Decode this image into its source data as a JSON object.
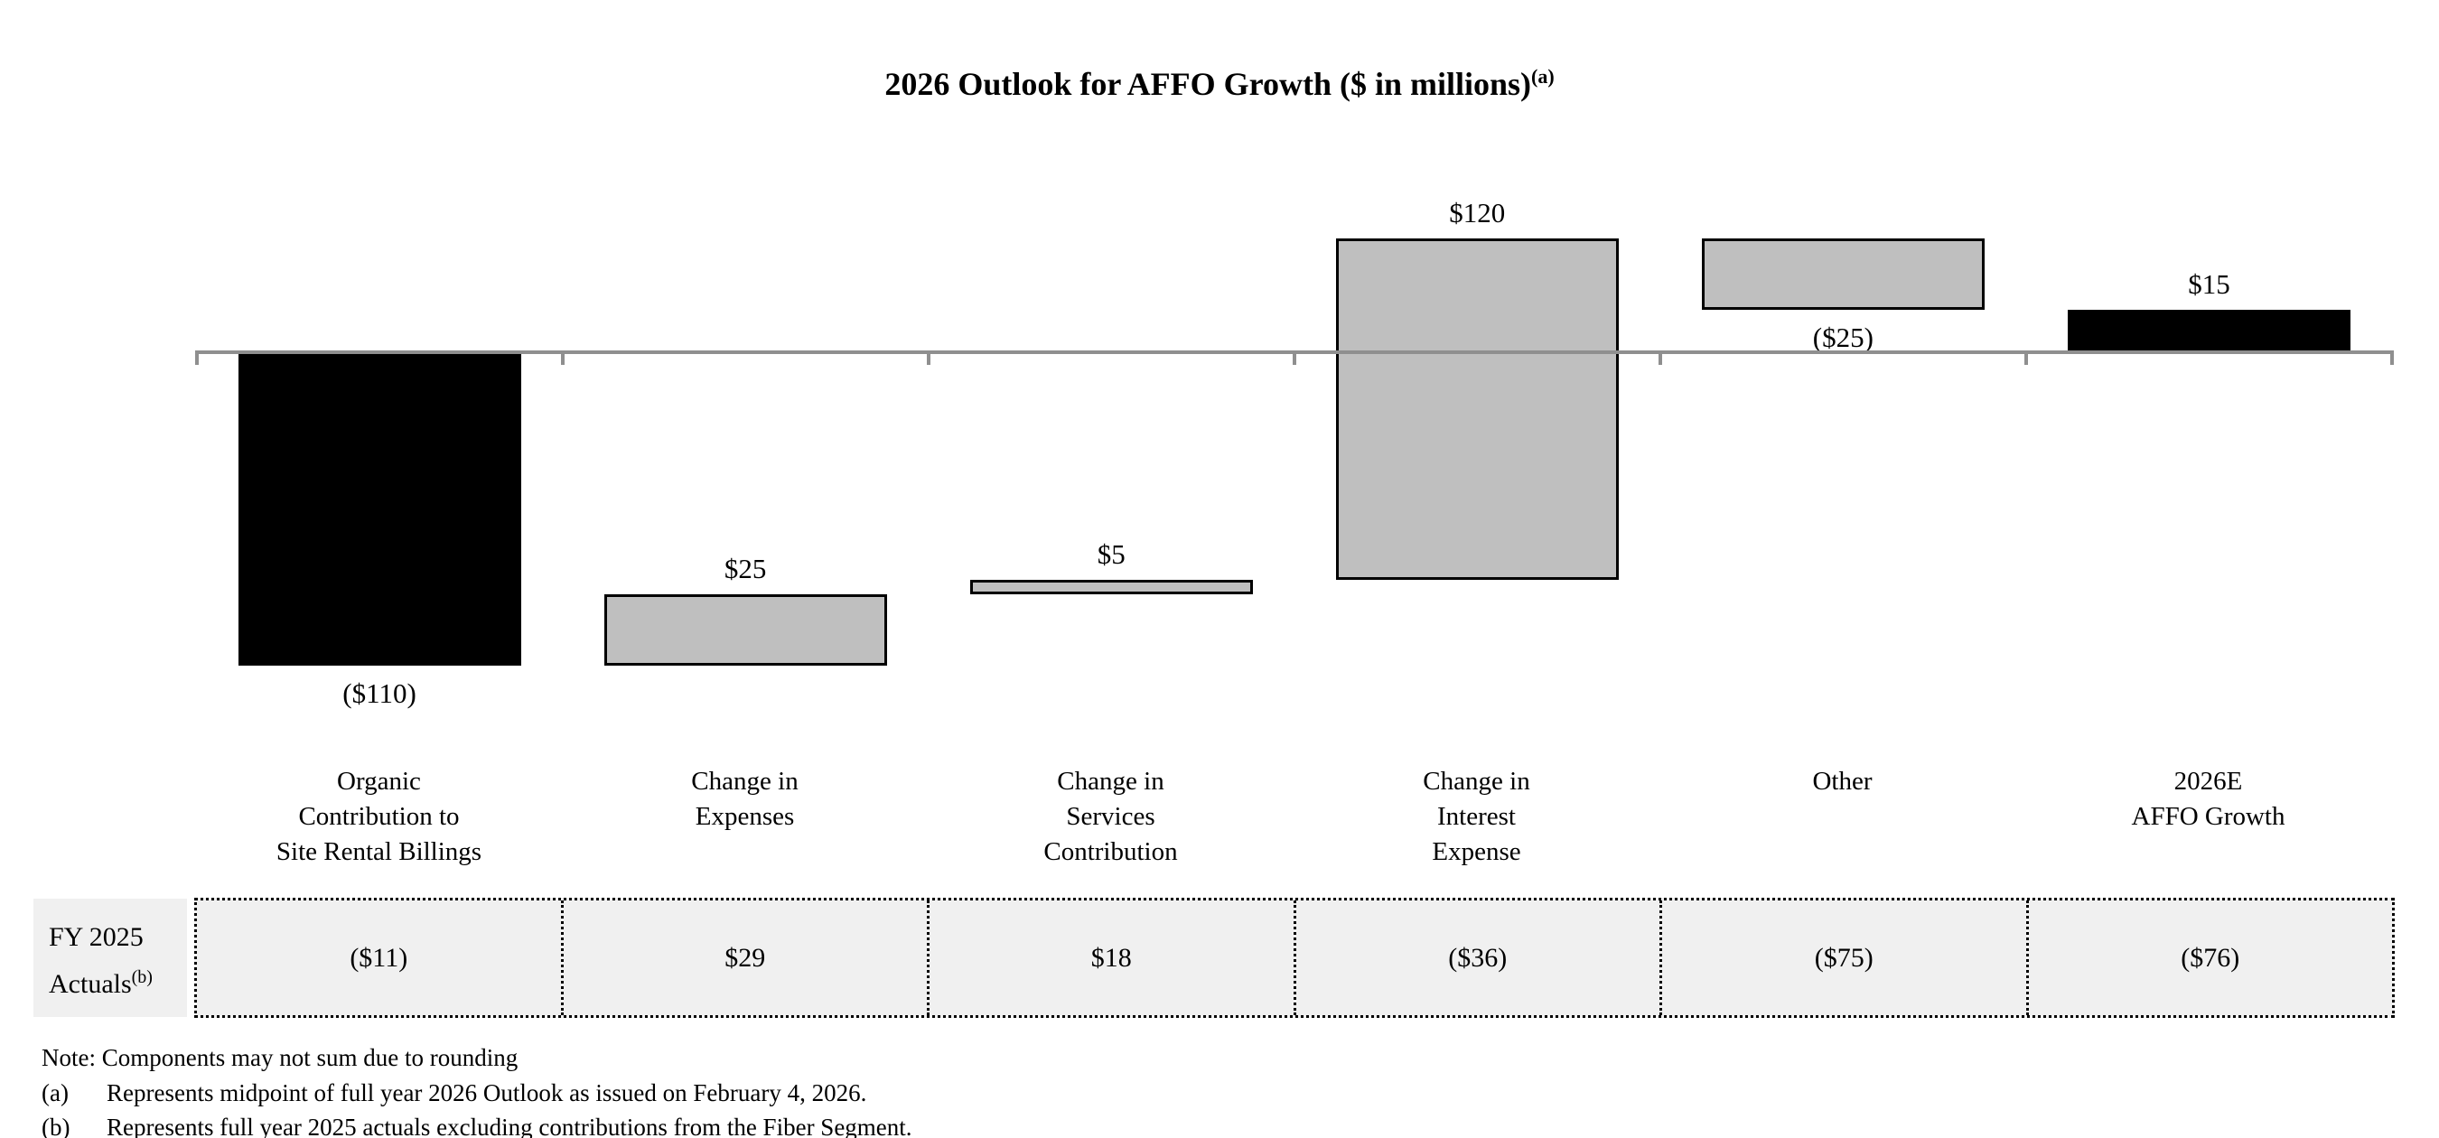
{
  "chart_data": {
    "type": "bar",
    "subtype": "waterfall",
    "title": "2026 Outlook for AFFO Growth ($ in millions)",
    "title_superscript": "(a)",
    "ylim": [
      -110,
      40
    ],
    "grid": false,
    "legend": "none",
    "categories": [
      "Organic\nContribution to\nSite Rental Billings",
      "Change in\nExpenses",
      "Change in\nServices\nContribution",
      "Change in\nInterest\nExpense",
      "Other",
      "2026E\nAFFO Growth"
    ],
    "bars": [
      {
        "value": -110,
        "kind": "relative",
        "label": "($110)",
        "label_position": "below",
        "color": "#000000"
      },
      {
        "value": 25,
        "kind": "relative",
        "label": "$25",
        "label_position": "above",
        "color": "#bfbfbf"
      },
      {
        "value": 5,
        "kind": "relative",
        "label": "$5",
        "label_position": "above",
        "color": "#bfbfbf"
      },
      {
        "value": 120,
        "kind": "relative",
        "label": "$120",
        "label_position": "above",
        "color": "#bfbfbf"
      },
      {
        "value": -25,
        "kind": "relative",
        "label": "($25)",
        "label_position": "below",
        "color": "#bfbfbf"
      },
      {
        "value": 15,
        "kind": "total",
        "label": "$15",
        "label_position": "above",
        "color": "#000000"
      }
    ],
    "axis_colors": {
      "zero_line": "#8f8f8f"
    },
    "fy2025_actuals": {
      "label_line1": "FY 2025",
      "label_line2": "Actuals",
      "label_superscript": "(b)",
      "values": [
        -11,
        29,
        18,
        -36,
        -75,
        -76
      ],
      "formatted": [
        "($11)",
        "$29",
        "$18",
        "($36)",
        "($75)",
        "($76)"
      ]
    }
  },
  "footnotes": {
    "note": "Note: Components may not sum due to rounding",
    "items": [
      {
        "marker": "(a)",
        "text": "Represents midpoint of full year 2026 Outlook as issued on February 4, 2026."
      },
      {
        "marker": "(b)",
        "text": "Represents full year 2025 actuals excluding contributions from the Fiber Segment."
      }
    ]
  }
}
